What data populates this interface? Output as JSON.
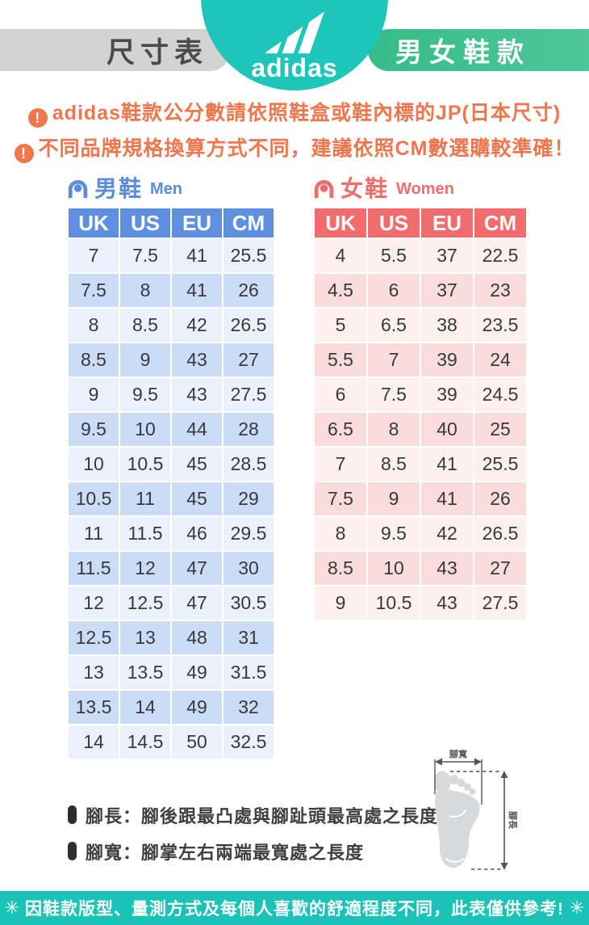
{
  "header": {
    "title": "尺寸表",
    "brand": "adidas",
    "category": "男女鞋款"
  },
  "warnings": [
    "adidas鞋款公分數請依照鞋盒或鞋內標的JP(日本尺寸)",
    "不同品牌規格換算方式不同，建議依照CM數選購較準確！"
  ],
  "men_table": {
    "label_zh": "男鞋",
    "label_en": "Men",
    "headers": [
      "UK",
      "US",
      "EU",
      "CM"
    ],
    "rows": [
      [
        "7",
        "7.5",
        "41",
        "25.5"
      ],
      [
        "7.5",
        "8",
        "41",
        "26"
      ],
      [
        "8",
        "8.5",
        "42",
        "26.5"
      ],
      [
        "8.5",
        "9",
        "43",
        "27"
      ],
      [
        "9",
        "9.5",
        "43",
        "27.5"
      ],
      [
        "9.5",
        "10",
        "44",
        "28"
      ],
      [
        "10",
        "10.5",
        "45",
        "28.5"
      ],
      [
        "10.5",
        "11",
        "45",
        "29"
      ],
      [
        "11",
        "11.5",
        "46",
        "29.5"
      ],
      [
        "11.5",
        "12",
        "47",
        "30"
      ],
      [
        "12",
        "12.5",
        "47",
        "30.5"
      ],
      [
        "12.5",
        "13",
        "48",
        "31"
      ],
      [
        "13",
        "13.5",
        "49",
        "31.5"
      ],
      [
        "13.5",
        "14",
        "49",
        "32"
      ],
      [
        "14",
        "14.5",
        "50",
        "32.5"
      ]
    ]
  },
  "women_table": {
    "label_zh": "女鞋",
    "label_en": "Women",
    "headers": [
      "UK",
      "US",
      "EU",
      "CM"
    ],
    "rows": [
      [
        "4",
        "5.5",
        "37",
        "22.5"
      ],
      [
        "4.5",
        "6",
        "37",
        "23"
      ],
      [
        "5",
        "6.5",
        "38",
        "23.5"
      ],
      [
        "5.5",
        "7",
        "39",
        "24"
      ],
      [
        "6",
        "7.5",
        "39",
        "24.5"
      ],
      [
        "6.5",
        "8",
        "40",
        "25"
      ],
      [
        "7",
        "8.5",
        "41",
        "25.5"
      ],
      [
        "7.5",
        "9",
        "41",
        "26"
      ],
      [
        "8",
        "9.5",
        "42",
        "26.5"
      ],
      [
        "8.5",
        "10",
        "43",
        "27"
      ],
      [
        "9",
        "10.5",
        "43",
        "27.5"
      ]
    ]
  },
  "notes": [
    "腳長：腳後跟最凸處與腳趾頭最高處之長度",
    "腳寬：腳掌左右兩端最寬處之長度"
  ],
  "foot_diagram": {
    "width_label": "腳寬",
    "length_label": "腳長"
  },
  "footer": {
    "burst": "✳",
    "text": "因鞋款版型、量測方式及每個人喜歡的舒適程度不同，此表僅供參考!"
  },
  "colors": {
    "brand_teal": "#1ec6ba",
    "category_green": "#3fbf8e",
    "title_gray": "#d3d3d3",
    "warning_orange": "#f0764e",
    "men_blue": "#5f90df",
    "women_red": "#f16c6c",
    "footer_teal": "#1bc2b6"
  }
}
